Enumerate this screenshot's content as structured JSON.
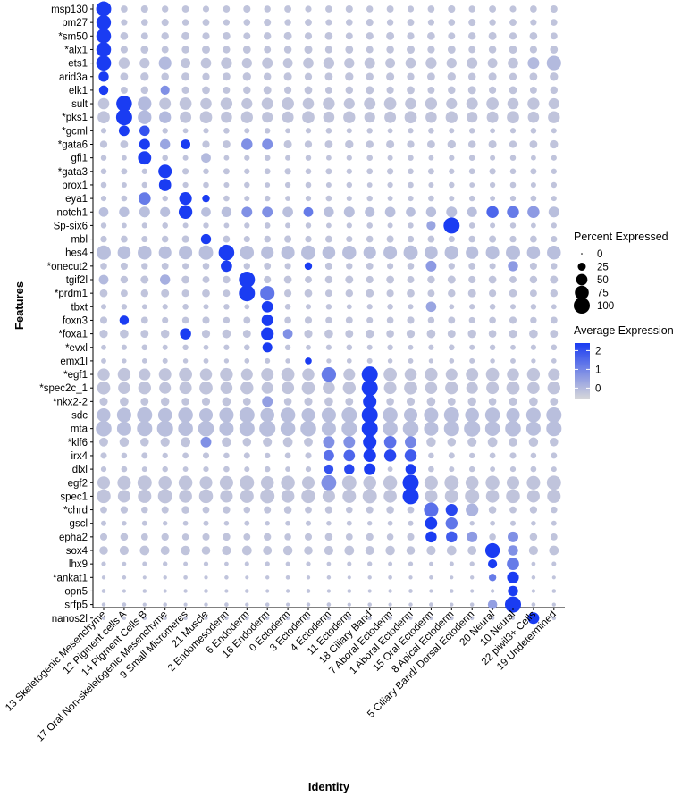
{
  "chart_data": {
    "type": "dotplot",
    "xlabel": "Identity",
    "ylabel": "Features",
    "categories": [
      "13 Skeletogenic Mesenchyme",
      "12 Pigment cells A",
      "14 Pigment Cells B",
      "17 Oral Non-skeletogenic Mesenchyme",
      "9 Small Micromeres",
      "21 Muscle",
      "2 Endomesoderm",
      "6 Endoderm",
      "16 Endoderm",
      "0 Ectoderm",
      "3 Ectoderm",
      "4 Ectoderm",
      "11 Ectoderm",
      "18 Ciliary Band",
      "7 Aboral Ectoderm",
      "1 Aboral Ectoderm",
      "15 Oral Ectoderm",
      "8 Apical Ectoderm",
      "5 Ciliary Band/ Dorsal Ectoderm",
      "20 Neural",
      "10 Neural",
      "22 piwil3+ Cells",
      "19 Undetermined"
    ],
    "features": [
      "msp130",
      "pm27",
      "*sm50",
      "*alx1",
      "ets1",
      "arid3a",
      "elk1",
      "sult",
      "*pks1",
      "*gcml",
      "*gata6",
      "gfi1",
      "*gata3",
      "prox1",
      "eya1",
      "notch1",
      "Sp-six6",
      "mbl",
      "hes4",
      "*onecut2",
      "tgif2l",
      "*prdm1",
      "tbxt",
      "foxn3",
      "*foxa1",
      "*evxl",
      "emx1l",
      "*egf1",
      "*spec2c_1",
      "*nkx2-2",
      "sdc",
      "mta",
      "*klf6",
      "irx4",
      "dlxl",
      "egf2",
      "spec1",
      "*chrd",
      "gscl",
      "epha2",
      "sox4",
      "lhx9",
      "*ankat1",
      "opn5",
      "srfp5",
      "nanos2l"
    ],
    "size_legend": {
      "title": "Percent Expressed",
      "values": [
        0,
        25,
        50,
        75,
        100
      ]
    },
    "color_legend": {
      "title": "Average Expression",
      "ticks": [
        0,
        1,
        2
      ],
      "range": [
        -0.6,
        2.4
      ],
      "low_color": "#d9d9d9",
      "high_color": "#1a3cf2"
    },
    "base_pct": [
      18,
      18,
      22,
      22,
      42,
      24,
      22,
      52,
      52,
      12,
      24,
      12,
      14,
      12,
      12,
      40,
      12,
      18,
      70,
      18,
      22,
      22,
      12,
      18,
      26,
      12,
      10,
      60,
      60,
      26,
      80,
      90,
      32,
      14,
      12,
      70,
      70,
      20,
      10,
      20,
      32,
      8,
      6,
      6,
      6,
      6
    ],
    "base_exp": [
      -0.2,
      -0.2,
      -0.2,
      -0.2,
      -0.2,
      -0.2,
      -0.2,
      -0.2,
      -0.2,
      -0.2,
      -0.2,
      -0.2,
      -0.2,
      -0.2,
      -0.2,
      -0.1,
      -0.2,
      -0.2,
      -0.1,
      -0.2,
      -0.2,
      -0.2,
      -0.2,
      -0.2,
      -0.2,
      -0.2,
      -0.2,
      -0.2,
      -0.2,
      -0.2,
      -0.1,
      -0.1,
      -0.2,
      -0.2,
      -0.2,
      -0.2,
      -0.2,
      -0.2,
      -0.2,
      -0.2,
      -0.2,
      -0.2,
      -0.2,
      -0.2,
      -0.2,
      -0.2
    ],
    "highlights": [
      {
        "feature": "msp130",
        "category": "13 Skeletogenic Mesenchyme",
        "pct": 88,
        "exp": 2.4
      },
      {
        "feature": "pm27",
        "category": "13 Skeletogenic Mesenchyme",
        "pct": 82,
        "exp": 2.4
      },
      {
        "feature": "*sm50",
        "category": "13 Skeletogenic Mesenchyme",
        "pct": 84,
        "exp": 2.4
      },
      {
        "feature": "*alx1",
        "category": "13 Skeletogenic Mesenchyme",
        "pct": 84,
        "exp": 2.4
      },
      {
        "feature": "ets1",
        "category": "13 Skeletogenic Mesenchyme",
        "pct": 86,
        "exp": 2.4
      },
      {
        "feature": "ets1",
        "category": "17 Oral Non-skeletogenic Mesenchyme",
        "pct": 62,
        "exp": 0
      },
      {
        "feature": "ets1",
        "category": "22 piwil3+ Cells",
        "pct": 52,
        "exp": 0
      },
      {
        "feature": "ets1",
        "category": "19 Undetermined",
        "pct": 80,
        "exp": 0
      },
      {
        "feature": "arid3a",
        "category": "13 Skeletogenic Mesenchyme",
        "pct": 40,
        "exp": 2.4
      },
      {
        "feature": "elk1",
        "category": "13 Skeletogenic Mesenchyme",
        "pct": 34,
        "exp": 2.4
      },
      {
        "feature": "elk1",
        "category": "17 Oral Non-skeletogenic Mesenchyme",
        "pct": 32,
        "exp": 0.8
      },
      {
        "feature": "sult",
        "category": "12 Pigment cells A",
        "pct": 95,
        "exp": 2.4
      },
      {
        "feature": "sult",
        "category": "14 Pigment Cells B",
        "pct": 72,
        "exp": 0
      },
      {
        "feature": "*pks1",
        "category": "12 Pigment cells A",
        "pct": 100,
        "exp": 2.4
      },
      {
        "feature": "*pks1",
        "category": "14 Pigment Cells B",
        "pct": 72,
        "exp": 0
      },
      {
        "feature": "*pks1",
        "category": "17 Oral Non-skeletogenic Mesenchyme",
        "pct": 55,
        "exp": 0
      },
      {
        "feature": "*gcml",
        "category": "12 Pigment cells A",
        "pct": 44,
        "exp": 2.4
      },
      {
        "feature": "*gcml",
        "category": "14 Pigment Cells B",
        "pct": 42,
        "exp": 2.0
      },
      {
        "feature": "*gata6",
        "category": "14 Pigment Cells B",
        "pct": 45,
        "exp": 2.4
      },
      {
        "feature": "*gata6",
        "category": "9 Small Micromeres",
        "pct": 36,
        "exp": 2.4
      },
      {
        "feature": "*gata6",
        "category": "6 Endoderm",
        "pct": 48,
        "exp": 0.8
      },
      {
        "feature": "*gata6",
        "category": "16 Endoderm",
        "pct": 44,
        "exp": 0.8
      },
      {
        "feature": "*gata6",
        "category": "17 Oral Non-skeletogenic Mesenchyme",
        "pct": 40,
        "exp": 0.4
      },
      {
        "feature": "gfi1",
        "category": "14 Pigment Cells B",
        "pct": 68,
        "exp": 2.4
      },
      {
        "feature": "gfi1",
        "category": "21 Muscle",
        "pct": 36,
        "exp": 0
      },
      {
        "feature": "*gata3",
        "category": "17 Oral Non-skeletogenic Mesenchyme",
        "pct": 70,
        "exp": 2.4
      },
      {
        "feature": "prox1",
        "category": "17 Oral Non-skeletogenic Mesenchyme",
        "pct": 58,
        "exp": 2.4
      },
      {
        "feature": "eya1",
        "category": "14 Pigment Cells B",
        "pct": 58,
        "exp": 1.2
      },
      {
        "feature": "eya1",
        "category": "9 Small Micromeres",
        "pct": 62,
        "exp": 2.4
      },
      {
        "feature": "eya1",
        "category": "21 Muscle",
        "pct": 22,
        "exp": 2.4
      },
      {
        "feature": "notch1",
        "category": "9 Small Micromeres",
        "pct": 72,
        "exp": 2.4
      },
      {
        "feature": "notch1",
        "category": "6 Endoderm",
        "pct": 44,
        "exp": 0.8
      },
      {
        "feature": "notch1",
        "category": "16 Endoderm",
        "pct": 44,
        "exp": 0.8
      },
      {
        "feature": "notch1",
        "category": "3 Ectoderm",
        "pct": 36,
        "exp": 1.2
      },
      {
        "feature": "notch1",
        "category": "20 Neural",
        "pct": 56,
        "exp": 1.6
      },
      {
        "feature": "notch1",
        "category": "10 Neural",
        "pct": 56,
        "exp": 1.2
      },
      {
        "feature": "notch1",
        "category": "22 piwil3+ Cells",
        "pct": 56,
        "exp": 0.6
      },
      {
        "feature": "Sp-six6",
        "category": "8 Apical Ectoderm",
        "pct": 100,
        "exp": 2.4
      },
      {
        "feature": "Sp-six6",
        "category": "15 Oral Ectoderm",
        "pct": 32,
        "exp": 0.4
      },
      {
        "feature": "mbl",
        "category": "21 Muscle",
        "pct": 40,
        "exp": 2.4
      },
      {
        "feature": "hes4",
        "category": "2 Endomesoderm",
        "pct": 95,
        "exp": 2.4
      },
      {
        "feature": "*onecut2",
        "category": "2 Endomesoderm",
        "pct": 50,
        "exp": 2.4
      },
      {
        "feature": "*onecut2",
        "category": "3 Ectoderm",
        "pct": 22,
        "exp": 2.4
      },
      {
        "feature": "*onecut2",
        "category": "15 Oral Ectoderm",
        "pct": 44,
        "exp": 0.6
      },
      {
        "feature": "*onecut2",
        "category": "10 Neural",
        "pct": 40,
        "exp": 0.6
      },
      {
        "feature": "tgif2l",
        "category": "6 Endoderm",
        "pct": 100,
        "exp": 2.4
      },
      {
        "feature": "tgif2l",
        "category": "13 Skeletogenic Mesenchyme",
        "pct": 36,
        "exp": 0
      },
      {
        "feature": "tgif2l",
        "category": "17 Oral Non-skeletogenic Mesenchyme",
        "pct": 40,
        "exp": 0.2
      },
      {
        "feature": "*prdm1",
        "category": "6 Endoderm",
        "pct": 100,
        "exp": 2.4
      },
      {
        "feature": "*prdm1",
        "category": "16 Endoderm",
        "pct": 80,
        "exp": 1.3
      },
      {
        "feature": "tbxt",
        "category": "16 Endoderm",
        "pct": 50,
        "exp": 2.4
      },
      {
        "feature": "tbxt",
        "category": "15 Oral Ectoderm",
        "pct": 42,
        "exp": 0.4
      },
      {
        "feature": "foxn3",
        "category": "16 Endoderm",
        "pct": 52,
        "exp": 2.4
      },
      {
        "feature": "foxn3",
        "category": "12 Pigment cells A",
        "pct": 34,
        "exp": 2.4
      },
      {
        "feature": "*foxa1",
        "category": "16 Endoderm",
        "pct": 62,
        "exp": 2.4
      },
      {
        "feature": "*foxa1",
        "category": "9 Small Micromeres",
        "pct": 48,
        "exp": 2.4
      },
      {
        "feature": "*foxa1",
        "category": "0 Ectoderm",
        "pct": 36,
        "exp": 0.8
      },
      {
        "feature": "*evxl",
        "category": "16 Endoderm",
        "pct": 38,
        "exp": 2.4
      },
      {
        "feature": "emx1l",
        "category": "3 Ectoderm",
        "pct": 18,
        "exp": 2.4
      },
      {
        "feature": "*egf1",
        "category": "18 Ciliary Band",
        "pct": 100,
        "exp": 2.4
      },
      {
        "feature": "*egf1",
        "category": "4 Ectoderm",
        "pct": 82,
        "exp": 1.2
      },
      {
        "feature": "*spec2c_1",
        "category": "18 Ciliary Band",
        "pct": 100,
        "exp": 2.4
      },
      {
        "feature": "*nkx2-2",
        "category": "18 Ciliary Band",
        "pct": 70,
        "exp": 2.4
      },
      {
        "feature": "*nkx2-2",
        "category": "16 Endoderm",
        "pct": 44,
        "exp": 0.5
      },
      {
        "feature": "sdc",
        "category": "18 Ciliary Band",
        "pct": 100,
        "exp": 2.4
      },
      {
        "feature": "mta",
        "category": "18 Ciliary Band",
        "pct": 100,
        "exp": 2.4
      },
      {
        "feature": "*klf6",
        "category": "18 Ciliary Band",
        "pct": 70,
        "exp": 2.4
      },
      {
        "feature": "*klf6",
        "category": "7 Aboral Ectoderm",
        "pct": 58,
        "exp": 1.4
      },
      {
        "feature": "*klf6",
        "category": "1 Aboral Ectoderm",
        "pct": 52,
        "exp": 1.0
      },
      {
        "feature": "*klf6",
        "category": "4 Ectoderm",
        "pct": 52,
        "exp": 0.8
      },
      {
        "feature": "*klf6",
        "category": "11 Ectoderm",
        "pct": 52,
        "exp": 0.8
      },
      {
        "feature": "*klf6",
        "category": "21 Muscle",
        "pct": 44,
        "exp": 0.8
      },
      {
        "feature": "irx4",
        "category": "18 Ciliary Band",
        "pct": 62,
        "exp": 2.4
      },
      {
        "feature": "irx4",
        "category": "7 Aboral Ectoderm",
        "pct": 56,
        "exp": 2.2
      },
      {
        "feature": "irx4",
        "category": "1 Aboral Ectoderm",
        "pct": 56,
        "exp": 1.8
      },
      {
        "feature": "irx4",
        "category": "11 Ectoderm",
        "pct": 50,
        "exp": 1.6
      },
      {
        "feature": "irx4",
        "category": "4 Ectoderm",
        "pct": 44,
        "exp": 1.4
      },
      {
        "feature": "dlxl",
        "category": "18 Ciliary Band",
        "pct": 52,
        "exp": 2.4
      },
      {
        "feature": "dlxl",
        "category": "1 Aboral Ectoderm",
        "pct": 42,
        "exp": 2.4
      },
      {
        "feature": "dlxl",
        "category": "11 Ectoderm",
        "pct": 40,
        "exp": 2.2
      },
      {
        "feature": "dlxl",
        "category": "4 Ectoderm",
        "pct": 34,
        "exp": 2.0
      },
      {
        "feature": "egf2",
        "category": "1 Aboral Ectoderm",
        "pct": 100,
        "exp": 2.4
      },
      {
        "feature": "egf2",
        "category": "4 Ectoderm",
        "pct": 88,
        "exp": 0.8
      },
      {
        "feature": "spec1",
        "category": "1 Aboral Ectoderm",
        "pct": 100,
        "exp": 2.4
      },
      {
        "feature": "*chrd",
        "category": "15 Oral Ectoderm",
        "pct": 80,
        "exp": 1.4
      },
      {
        "feature": "*chrd",
        "category": "8 Apical Ectoderm",
        "pct": 54,
        "exp": 2.2
      },
      {
        "feature": "*chrd",
        "category": "5 Ciliary Band/ Dorsal Ectoderm",
        "pct": 62,
        "exp": 0.1
      },
      {
        "feature": "gscl",
        "category": "15 Oral Ectoderm",
        "pct": 58,
        "exp": 2.4
      },
      {
        "feature": "gscl",
        "category": "8 Apical Ectoderm",
        "pct": 56,
        "exp": 1.3
      },
      {
        "feature": "epha2",
        "category": "15 Oral Ectoderm",
        "pct": 48,
        "exp": 2.4
      },
      {
        "feature": "epha2",
        "category": "8 Apical Ectoderm",
        "pct": 48,
        "exp": 1.8
      },
      {
        "feature": "epha2",
        "category": "5 Ciliary Band/ Dorsal Ectoderm",
        "pct": 44,
        "exp": 0.6
      },
      {
        "feature": "epha2",
        "category": "10 Neural",
        "pct": 44,
        "exp": 0.8
      },
      {
        "feature": "sox4",
        "category": "20 Neural",
        "pct": 82,
        "exp": 2.4
      },
      {
        "feature": "sox4",
        "category": "10 Neural",
        "pct": 40,
        "exp": 0.8
      },
      {
        "feature": "lhx9",
        "category": "10 Neural",
        "pct": 58,
        "exp": 1.2
      },
      {
        "feature": "lhx9",
        "category": "20 Neural",
        "pct": 32,
        "exp": 2.4
      },
      {
        "feature": "*ankat1",
        "category": "10 Neural",
        "pct": 54,
        "exp": 2.4
      },
      {
        "feature": "*ankat1",
        "category": "20 Neural",
        "pct": 22,
        "exp": 1.2
      },
      {
        "feature": "opn5",
        "category": "10 Neural",
        "pct": 40,
        "exp": 2.4
      },
      {
        "feature": "srfp5",
        "category": "10 Neural",
        "pct": 100,
        "exp": 2.4
      },
      {
        "feature": "srfp5",
        "category": "20 Neural",
        "pct": 34,
        "exp": 0.5
      },
      {
        "feature": "nanos2l",
        "category": "22 piwil3+ Cells",
        "pct": 52,
        "exp": 2.4
      }
    ]
  }
}
